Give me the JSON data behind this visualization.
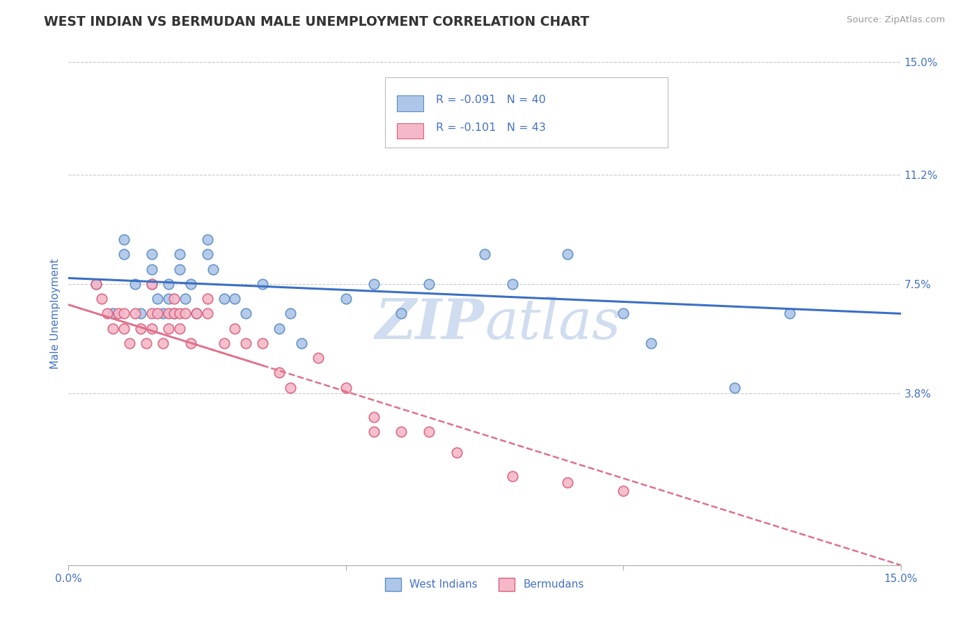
{
  "title": "WEST INDIAN VS BERMUDAN MALE UNEMPLOYMENT CORRELATION CHART",
  "source": "Source: ZipAtlas.com",
  "ylabel": "Male Unemployment",
  "x_min": 0.0,
  "x_max": 0.15,
  "y_min": -0.02,
  "y_max": 0.15,
  "y_tick_labels_right": [
    "15.0%",
    "11.2%",
    "7.5%",
    "3.8%"
  ],
  "y_tick_vals_right": [
    0.15,
    0.112,
    0.075,
    0.038
  ],
  "legend_r_n": [
    {
      "R": "-0.091",
      "N": "40"
    },
    {
      "R": "-0.101",
      "N": "43"
    }
  ],
  "west_indian_color": "#aec6e8",
  "west_indian_edge_color": "#5b8ec4",
  "bermudan_color": "#f5b8c8",
  "bermudan_edge_color": "#d9607e",
  "west_indian_line_color": "#3a6fc4",
  "bermudan_line_color": "#e0708a",
  "grid_color": "#c8c8c8",
  "background_color": "#ffffff",
  "title_color": "#333333",
  "tick_label_color": "#4472c4",
  "watermark_color": "#d0ddf0",
  "west_indian_x": [
    0.005,
    0.008,
    0.01,
    0.01,
    0.012,
    0.013,
    0.015,
    0.015,
    0.015,
    0.016,
    0.017,
    0.018,
    0.018,
    0.019,
    0.02,
    0.02,
    0.021,
    0.022,
    0.023,
    0.025,
    0.025,
    0.026,
    0.028,
    0.03,
    0.032,
    0.035,
    0.038,
    0.04,
    0.042,
    0.05,
    0.055,
    0.06,
    0.065,
    0.075,
    0.08,
    0.09,
    0.1,
    0.105,
    0.12,
    0.13
  ],
  "west_indian_y": [
    0.075,
    0.065,
    0.09,
    0.085,
    0.075,
    0.065,
    0.085,
    0.08,
    0.075,
    0.07,
    0.065,
    0.075,
    0.07,
    0.065,
    0.085,
    0.08,
    0.07,
    0.075,
    0.065,
    0.09,
    0.085,
    0.08,
    0.07,
    0.07,
    0.065,
    0.075,
    0.06,
    0.065,
    0.055,
    0.07,
    0.075,
    0.065,
    0.075,
    0.085,
    0.075,
    0.085,
    0.065,
    0.055,
    0.04,
    0.065
  ],
  "bermudan_x": [
    0.005,
    0.006,
    0.007,
    0.008,
    0.009,
    0.01,
    0.01,
    0.011,
    0.012,
    0.013,
    0.014,
    0.015,
    0.015,
    0.015,
    0.016,
    0.017,
    0.018,
    0.018,
    0.019,
    0.019,
    0.02,
    0.02,
    0.021,
    0.022,
    0.023,
    0.025,
    0.025,
    0.028,
    0.03,
    0.032,
    0.035,
    0.038,
    0.04,
    0.045,
    0.05,
    0.055,
    0.055,
    0.06,
    0.065,
    0.07,
    0.08,
    0.09,
    0.1
  ],
  "bermudan_y": [
    0.075,
    0.07,
    0.065,
    0.06,
    0.065,
    0.065,
    0.06,
    0.055,
    0.065,
    0.06,
    0.055,
    0.065,
    0.06,
    0.075,
    0.065,
    0.055,
    0.065,
    0.06,
    0.07,
    0.065,
    0.065,
    0.06,
    0.065,
    0.055,
    0.065,
    0.07,
    0.065,
    0.055,
    0.06,
    0.055,
    0.055,
    0.045,
    0.04,
    0.05,
    0.04,
    0.03,
    0.025,
    0.025,
    0.025,
    0.018,
    0.01,
    0.008,
    0.005
  ],
  "wi_line_x0": 0.0,
  "wi_line_y0": 0.077,
  "wi_line_x1": 0.15,
  "wi_line_y1": 0.065,
  "bm_line_x0": 0.0,
  "bm_line_y0": 0.068,
  "bm_line_x1": 0.15,
  "bm_line_y1": -0.02
}
